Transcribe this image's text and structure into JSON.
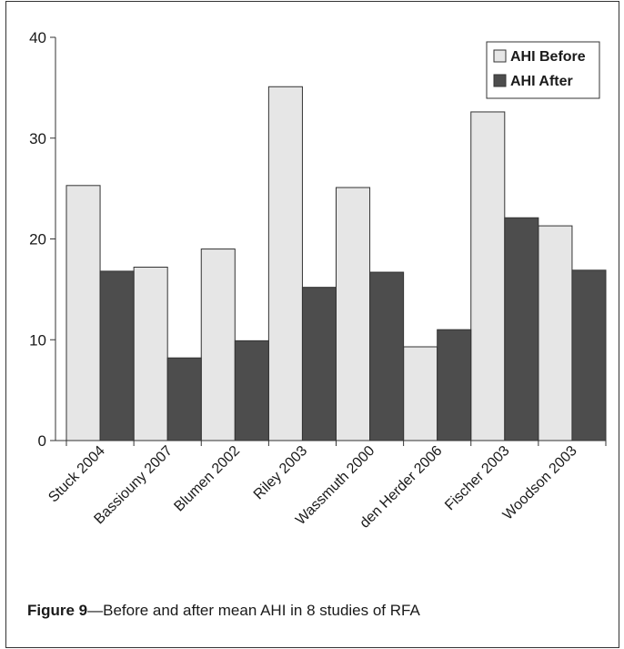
{
  "figure": {
    "caption_lead": "Figure 9",
    "caption_dash": "—",
    "caption_text": "Before and after mean AHI in 8 studies of RFA"
  },
  "chart_data": {
    "type": "bar",
    "categories": [
      "Stuck 2004",
      "Bassiouny 2007",
      "Blumen 2002",
      "Riley 2003",
      "Wassmuth 2000",
      "den Herder 2006",
      "Fischer 2003",
      "Woodson 2003"
    ],
    "series": [
      {
        "name": "AHI Before",
        "color": "#e6e6e6",
        "values": [
          25.3,
          17.2,
          19.0,
          35.1,
          25.1,
          9.3,
          32.6,
          21.3
        ]
      },
      {
        "name": "AHI After",
        "color": "#4d4d4d",
        "values": [
          16.8,
          8.2,
          9.9,
          15.2,
          16.7,
          11.0,
          22.1,
          16.9
        ]
      }
    ],
    "yticks": [
      "0",
      "10",
      "20",
      "30",
      "40"
    ],
    "ylim": [
      0,
      40
    ],
    "xlabel": "",
    "ylabel": "",
    "grid": false,
    "legend": "top-right"
  }
}
